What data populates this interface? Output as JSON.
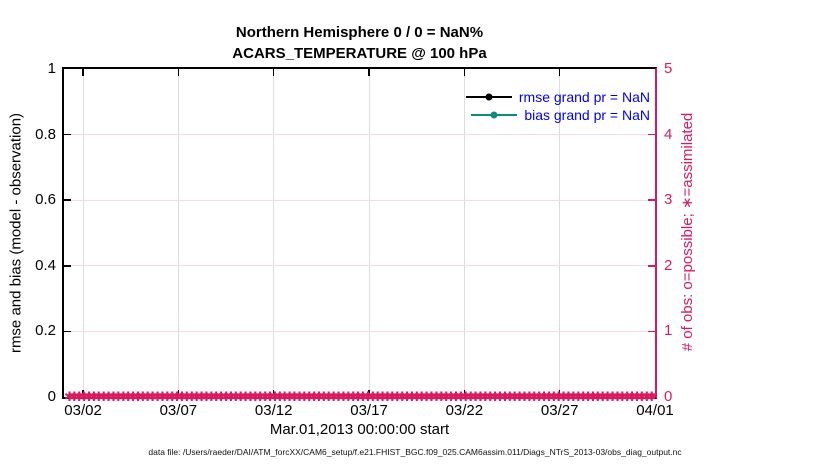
{
  "figure": {
    "footer": "data file: /Users/raeder/DAI/ATM_forcXX/CAM6_setup/f.e21.FHIST_BGC.f09_025.CAM6assim.011/Diags_NTrS_2013-03/obs_diag_output.nc"
  },
  "colors": {
    "axis_left": "#000000",
    "accent_pink": "#d81b60",
    "grid_vertical": "#dcdcdc",
    "grid_horizontal": "#f6dbe6",
    "legend_text": "#0000ee",
    "rmse_color": "#000000",
    "bias_color": "#108a7d"
  },
  "chart_data": {
    "type": "line",
    "title": "Northern Hemisphere 0 / 0 = NaN%",
    "subtitle": "ACARS_TEMPERATURE @ 100 hPa",
    "xlabel": "Mar.01,2013 00:00:00 start",
    "ylabel_left": "rmse and bias (model - observation)",
    "ylabel_right": "# of obs: o=possible; ∗=assimilated",
    "ylim_left": [
      0,
      1
    ],
    "ylim_right": [
      0,
      5
    ],
    "x_range_days": [
      0,
      31
    ],
    "x_ticks": [
      {
        "day": 1,
        "label": "03/02"
      },
      {
        "day": 6,
        "label": "03/07"
      },
      {
        "day": 11,
        "label": "03/12"
      },
      {
        "day": 16,
        "label": "03/17"
      },
      {
        "day": 21,
        "label": "03/22"
      },
      {
        "day": 26,
        "label": "03/27"
      },
      {
        "day": 31,
        "label": "04/01"
      }
    ],
    "y_ticks_left": [
      0,
      0.2,
      0.4,
      0.6,
      0.8,
      1
    ],
    "y_ticks_right": [
      0,
      1,
      2,
      3,
      4,
      5
    ],
    "grid": true,
    "legend_position": "top-right-inside",
    "series": [
      {
        "name": "rmse grand pr = NaN",
        "color": "#000000",
        "marker": "circle",
        "values": "NaN"
      },
      {
        "name": "bias grand pr = NaN",
        "color": "#108a7d",
        "marker": "circle",
        "values": "NaN"
      },
      {
        "name": "obs possible (o)",
        "color": "#d81b60",
        "value_all_times": 0
      },
      {
        "name": "obs assimilated (∗)",
        "color": "#d81b60",
        "value_all_times": 0
      }
    ],
    "obs_band": {
      "symbol": "✱",
      "marker_count": 140,
      "y_value": 0
    }
  }
}
